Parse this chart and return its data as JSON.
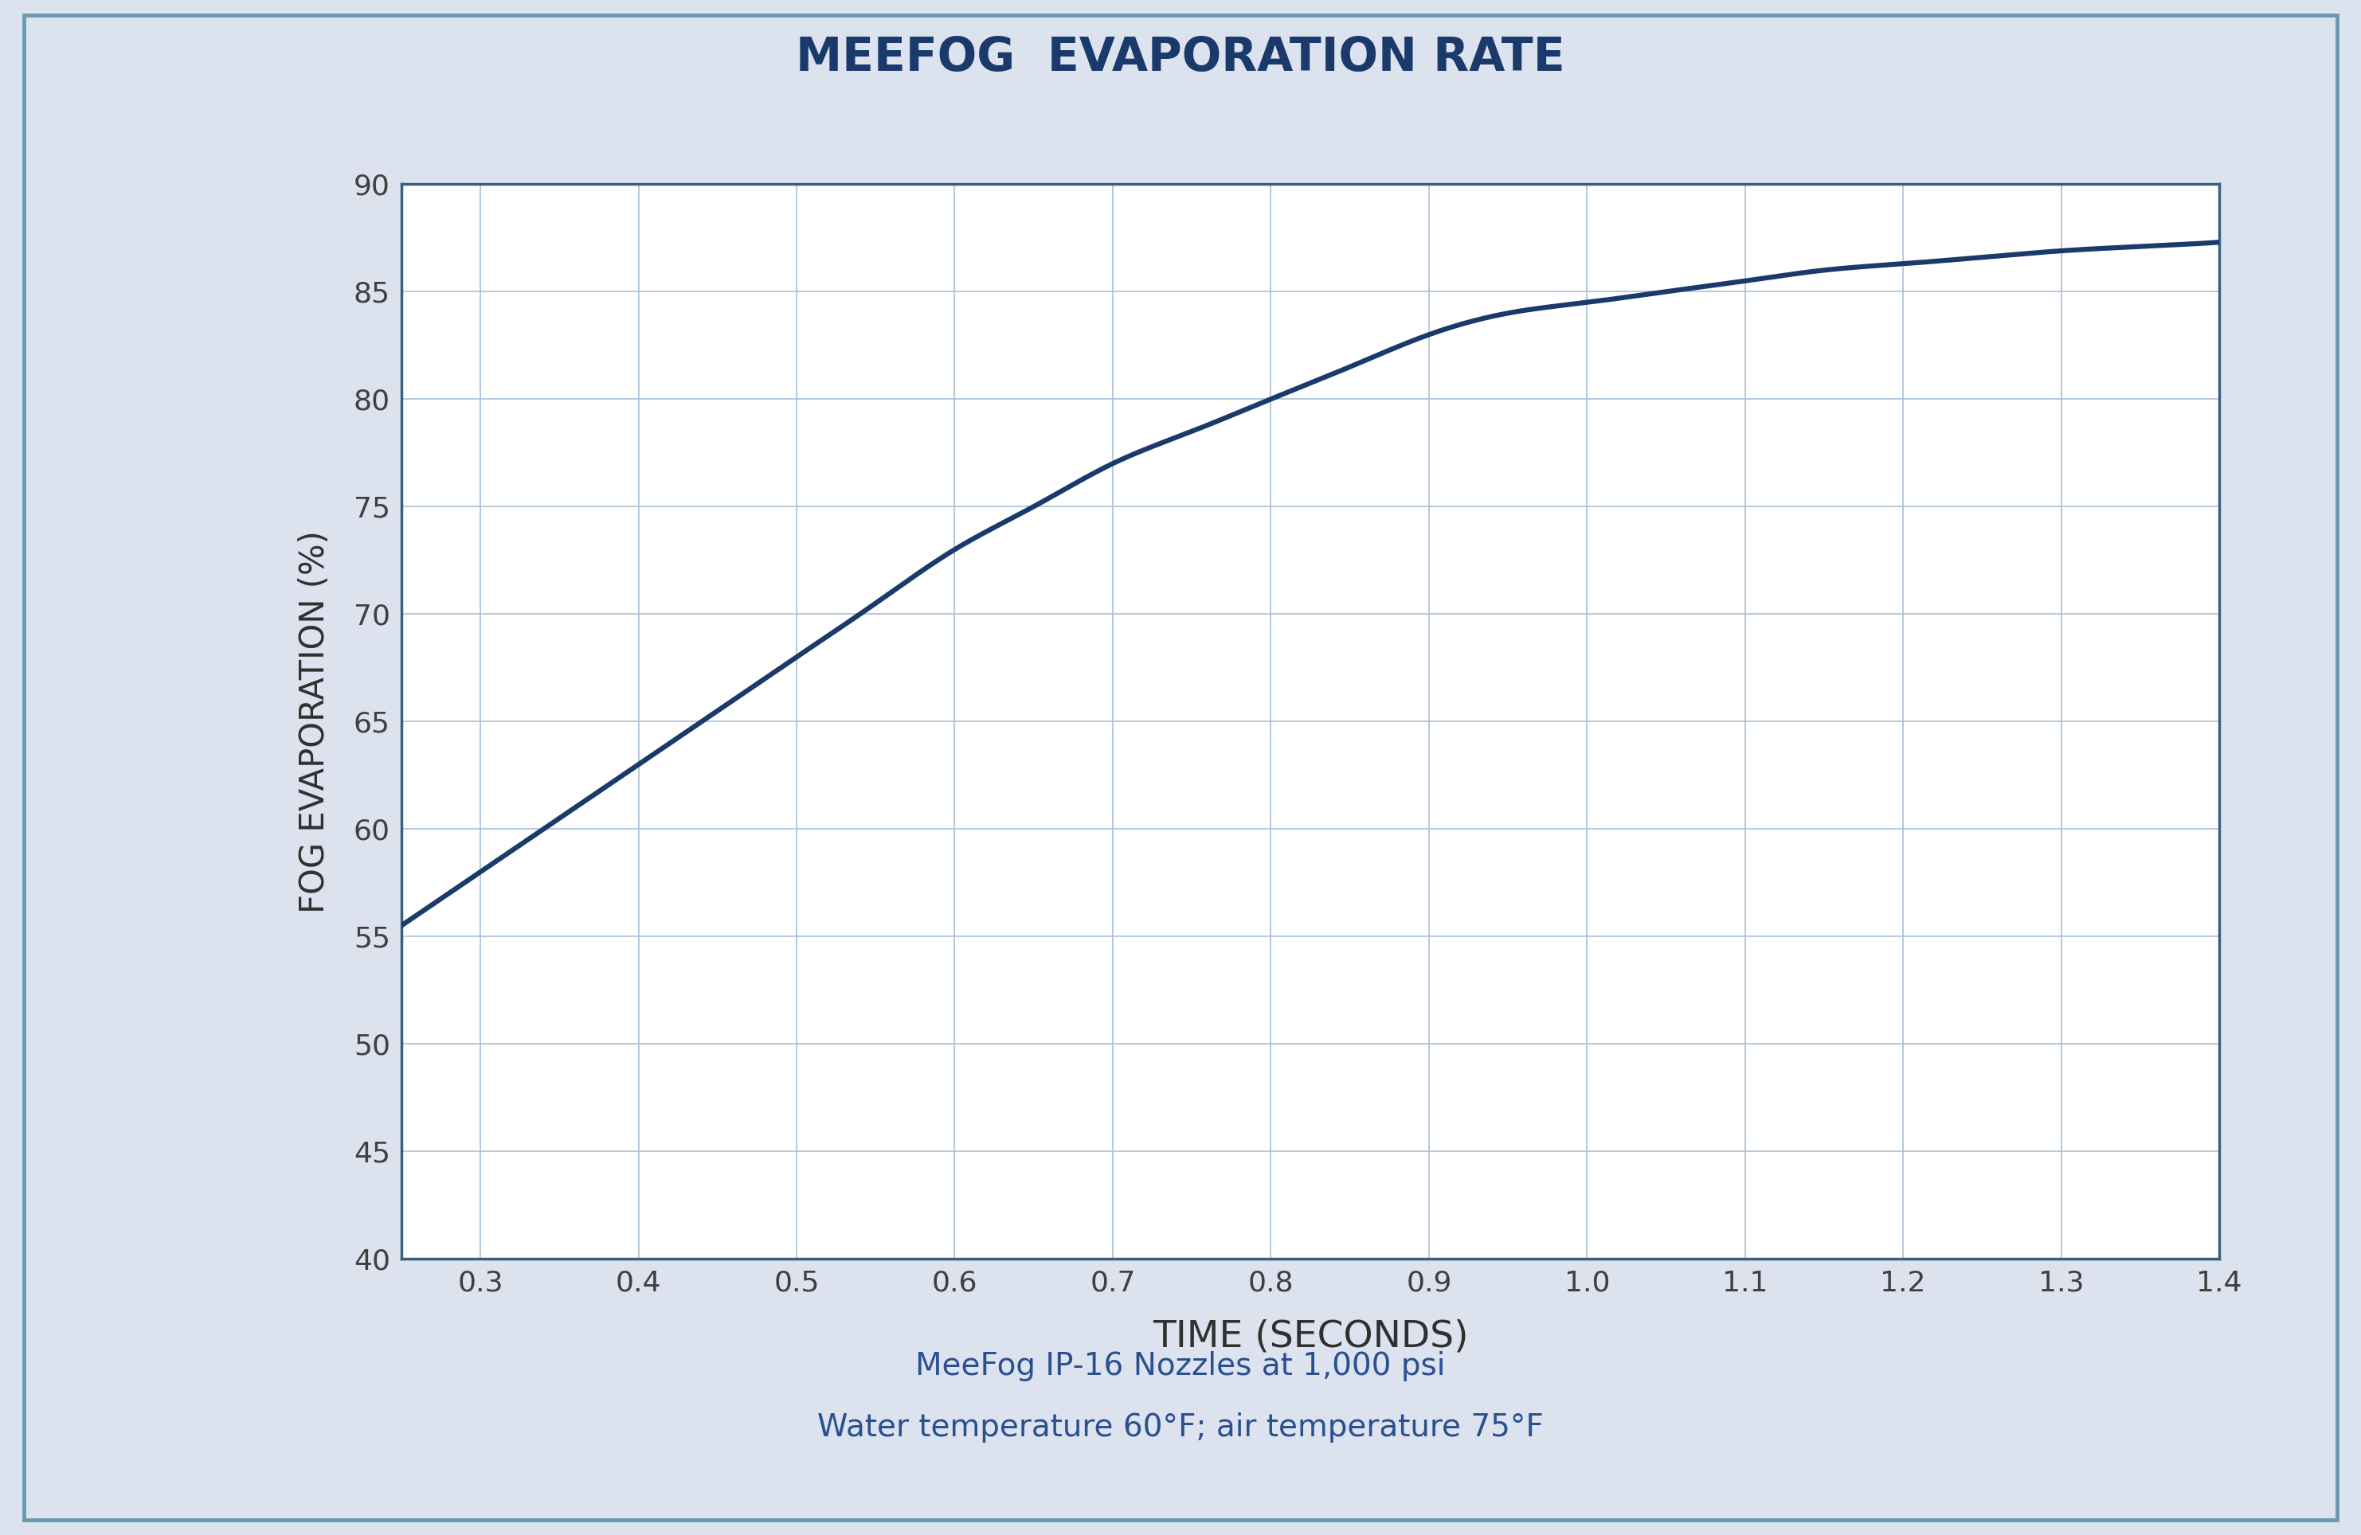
{
  "title": "MEEFOG  EVAPORATION RATE",
  "title_color": "#1a3a6b",
  "title_bg_color": "#d0d8e8",
  "outer_bg_color": "#dce3ef",
  "inner_bg_color": "#ffffff",
  "plot_bg_color": "#ffffff",
  "curve_color": "#1a3a6b",
  "grid_color": "#a8c0d8",
  "axis_border_color": "#3a6080",
  "xlabel": "TIME (SECONDS)",
  "ylabel": "FOG EVAPORATION (%)",
  "xlim": [
    0.25,
    1.4
  ],
  "ylim": [
    40,
    90
  ],
  "xticks": [
    0.3,
    0.4,
    0.5,
    0.6,
    0.7,
    0.8,
    0.9,
    1.0,
    1.1,
    1.2,
    1.3,
    1.4
  ],
  "yticks": [
    40,
    45,
    50,
    55,
    60,
    65,
    70,
    75,
    80,
    85,
    90
  ],
  "subtitle_line1": "MeeFog IP-16 Nozzles at 1,000 psi",
  "subtitle_line2": "Water temperature 60°F; air temperature 75°F",
  "subtitle_color": "#2a5090",
  "curve_x": [
    0.25,
    0.27,
    0.29,
    0.31,
    0.33,
    0.35,
    0.38,
    0.41,
    0.45,
    0.5,
    0.55,
    0.6,
    0.65,
    0.7,
    0.75,
    0.8,
    0.85,
    0.9,
    0.95,
    1.0,
    1.05,
    1.1,
    1.15,
    1.2,
    1.25,
    1.3,
    1.35,
    1.4
  ],
  "curve_y": [
    55.5,
    56.5,
    57.5,
    58.5,
    59.5,
    60.5,
    62.0,
    63.5,
    65.5,
    68.0,
    70.5,
    73.0,
    75.0,
    77.0,
    78.5,
    80.0,
    81.5,
    83.0,
    84.0,
    84.5,
    85.0,
    85.5,
    86.0,
    86.3,
    86.6,
    86.9,
    87.1,
    87.3
  ]
}
